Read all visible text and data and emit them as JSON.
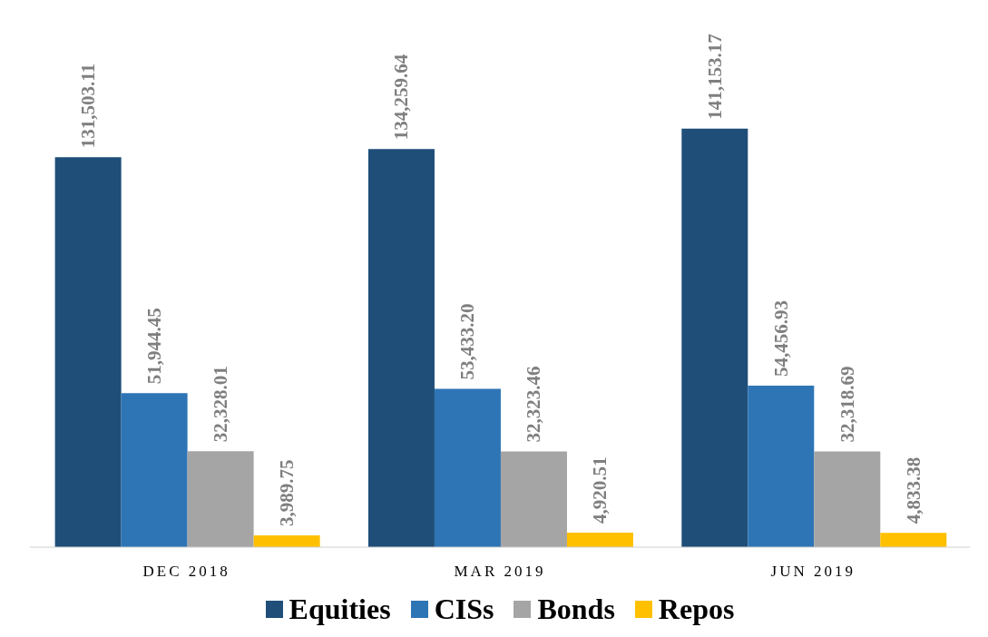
{
  "chart_data": {
    "type": "bar",
    "categories": [
      "DEC 2018",
      "MAR 2019",
      "JUN 2019"
    ],
    "legend": "bottom",
    "grid": false,
    "series": [
      {
        "name": "Equities",
        "color": "#1f4e79",
        "values": [
          131503.11,
          134259.64,
          141153.17
        ],
        "value_labels": [
          "131,503.11",
          "134,259.64",
          "141,153.17"
        ]
      },
      {
        "name": "CISs",
        "color": "#2e75b6",
        "values": [
          51944.45,
          53433.2,
          54456.93
        ],
        "value_labels": [
          "51,944.45",
          "53,433.20",
          "54,456.93"
        ]
      },
      {
        "name": "Bonds",
        "color": "#a5a5a5",
        "values": [
          32328.01,
          32323.46,
          32318.69
        ],
        "value_labels": [
          "32,328.01",
          "32,323.46",
          "32,318.69"
        ]
      },
      {
        "name": "Repos",
        "color": "#ffc000",
        "values": [
          3989.75,
          4920.51,
          4833.38
        ],
        "value_labels": [
          "3,989.75",
          "4,920.51",
          "4,833.38"
        ]
      }
    ]
  }
}
